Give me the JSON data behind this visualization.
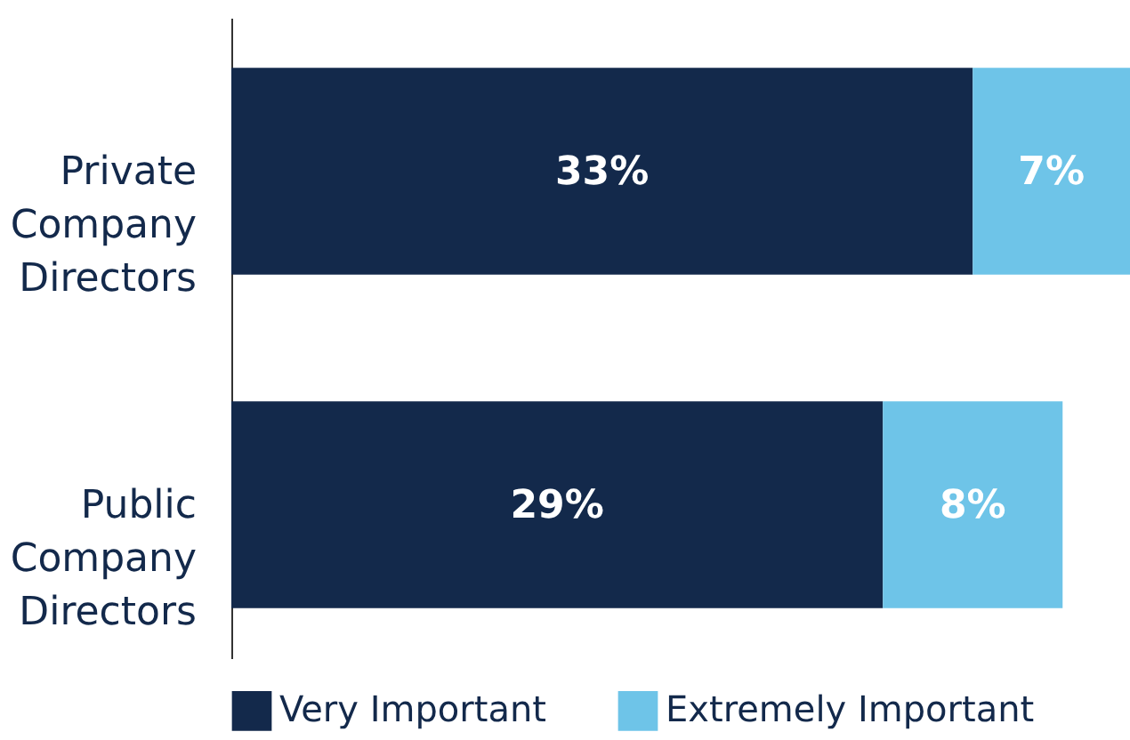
{
  "chart_data": {
    "type": "bar",
    "orientation": "horizontal",
    "stacked": true,
    "legend": "bottom",
    "categories": [
      "Private Company Directors",
      "Public Company Directors"
    ],
    "series": [
      {
        "name": "Very Important",
        "color": "#13294b",
        "values": [
          33,
          29
        ],
        "value_labels": [
          "33%",
          "29%"
        ]
      },
      {
        "name": "Extremely Important",
        "color": "#6ec4e8",
        "values": [
          7,
          8
        ],
        "value_labels": [
          "7%",
          "8%"
        ]
      }
    ]
  }
}
